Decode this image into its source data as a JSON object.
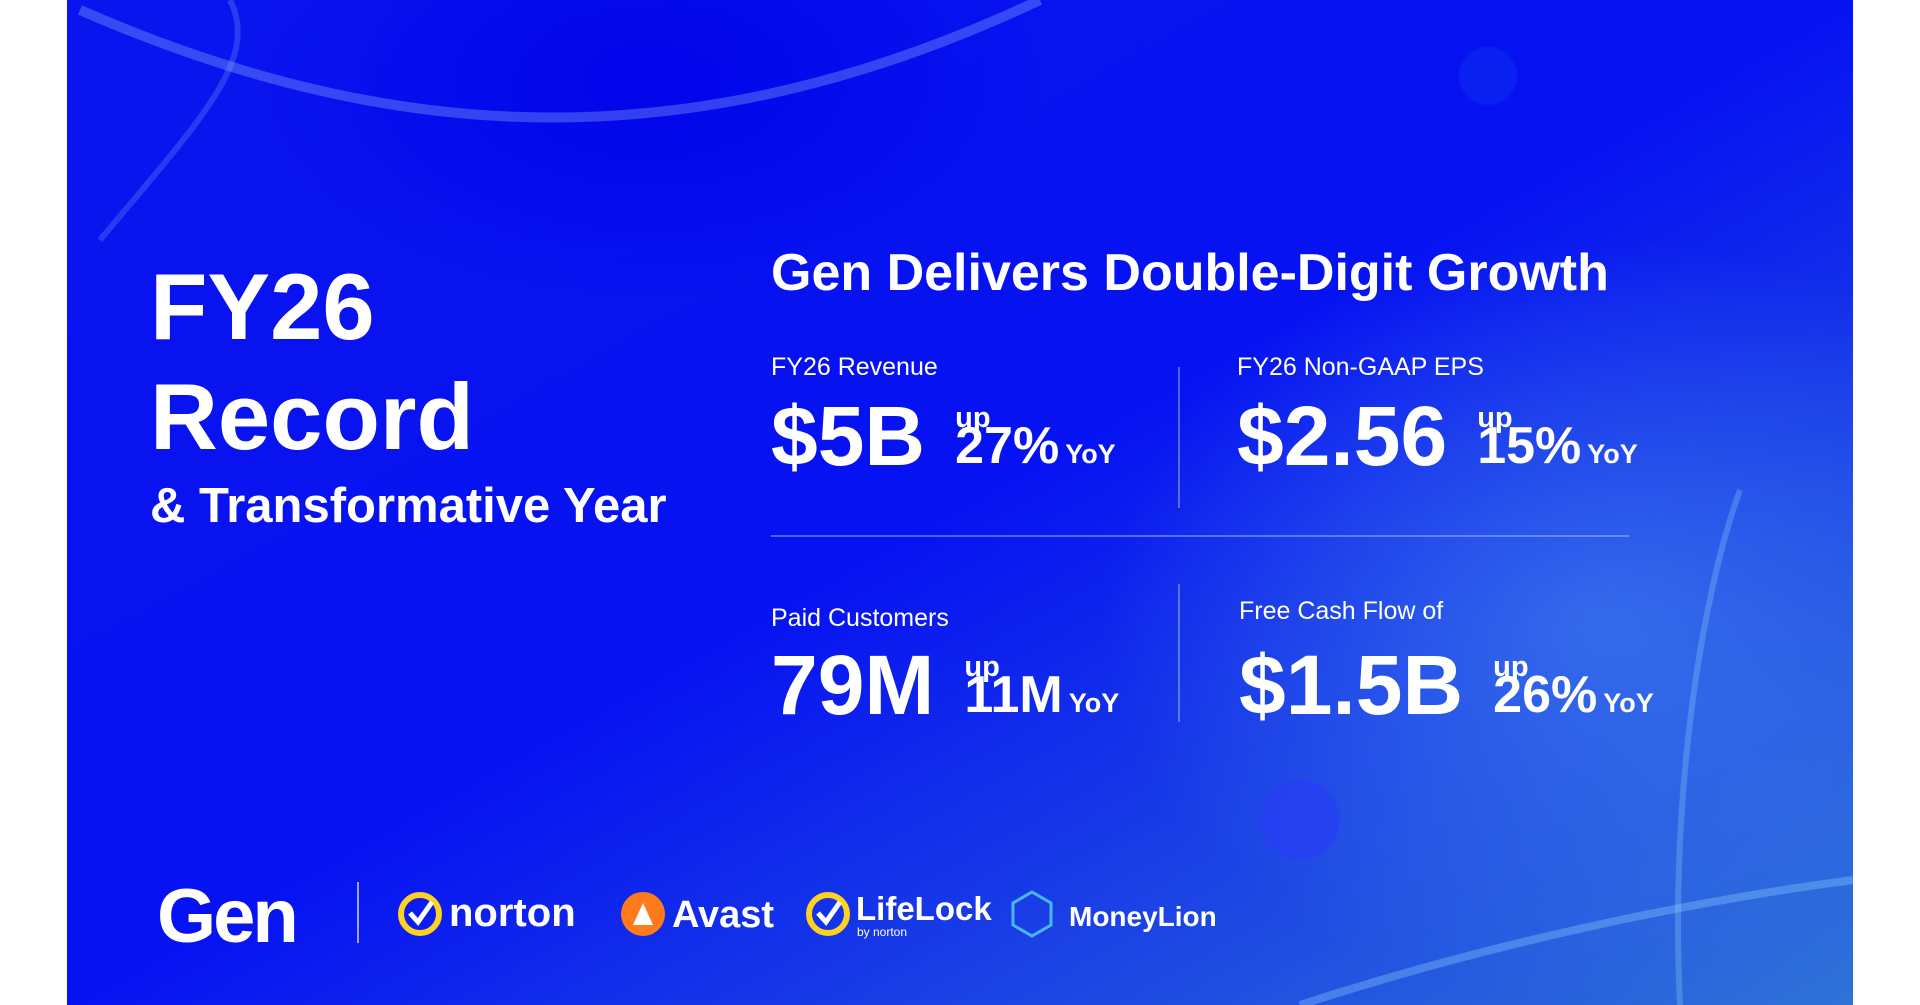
{
  "headline": {
    "line1": "FY26",
    "line2": "Record",
    "line3": "& Transformative Year"
  },
  "panel": {
    "title": "Gen Delivers Double-Digit Growth",
    "metrics": [
      {
        "label": "FY26 Revenue",
        "value": "$5B",
        "up": "up",
        "change": "27%",
        "period": "YoY"
      },
      {
        "label": "FY26 Non-GAAP EPS",
        "value": "$2.56",
        "up": "up",
        "change": "15%",
        "period": "YoY"
      },
      {
        "label": "Paid Customers",
        "value": "79M",
        "up": "up",
        "change": "11M",
        "period": "YoY"
      },
      {
        "label": "Free Cash Flow of",
        "value": "$1.5B",
        "up": "up",
        "change": "26%",
        "period": "YoY"
      }
    ]
  },
  "brands": {
    "gen": "Gen",
    "norton": "norton",
    "avast": "Avast",
    "lifelock": "LifeLock",
    "lifelock_sub": "by norton",
    "moneylion": "MoneyLion"
  }
}
